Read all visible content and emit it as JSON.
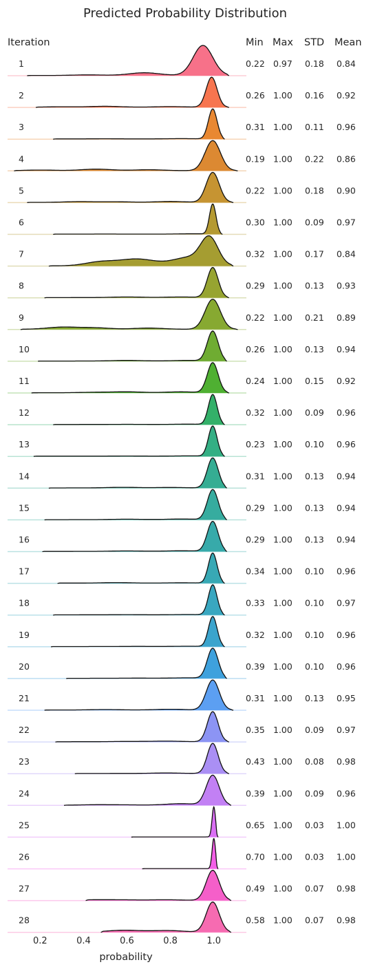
{
  "chart_data": {
    "type": "ridgeline",
    "title": "Predicted Probability Distribution",
    "xlabel": "probability",
    "ylabel": "Iteration",
    "xticks": [
      "0.2",
      "0.4",
      "0.6",
      "0.8",
      "1.0"
    ],
    "xtick_values": [
      0.2,
      0.4,
      0.6,
      0.8,
      1.0
    ],
    "xlim": [
      0.05,
      1.15
    ],
    "columns": [
      "Min",
      "Max",
      "STD",
      "Mean"
    ],
    "grid": false,
    "series": [
      {
        "iteration": "1",
        "min": "0.22",
        "max": "0.97",
        "std": "0.18",
        "mean": "0.84",
        "color": "#f77189",
        "peak": 0.95,
        "width": 0.045,
        "range": [
          0.14,
          1.07
        ],
        "tail": [
          [
            0.42,
            0.02
          ],
          [
            0.68,
            0.09
          ]
        ]
      },
      {
        "iteration": "2",
        "min": "0.26",
        "max": "1.00",
        "std": "0.16",
        "mean": "0.92",
        "color": "#f7754f",
        "peak": 0.99,
        "width": 0.025,
        "range": [
          0.18,
          1.07
        ],
        "tail": [
          [
            0.3,
            0.015
          ],
          [
            0.5,
            0.03
          ],
          [
            0.8,
            0.02
          ]
        ]
      },
      {
        "iteration": "3",
        "min": "0.31",
        "max": "1.00",
        "std": "0.11",
        "mean": "0.96",
        "color": "#e98832",
        "peak": 0.995,
        "width": 0.02,
        "range": [
          0.26,
          1.05
        ],
        "tail": [
          [
            0.5,
            0.005
          ],
          [
            0.85,
            0.01
          ]
        ]
      },
      {
        "iteration": "4",
        "min": "0.19",
        "max": "1.00",
        "std": "0.22",
        "mean": "0.86",
        "color": "#dc8932",
        "peak": 0.995,
        "width": 0.035,
        "range": [
          0.08,
          1.11
        ],
        "tail": [
          [
            0.2,
            0.02
          ],
          [
            0.46,
            0.05
          ],
          [
            0.7,
            0.03
          ]
        ]
      },
      {
        "iteration": "5",
        "min": "0.22",
        "max": "1.00",
        "std": "0.18",
        "mean": "0.90",
        "color": "#c69432",
        "peak": 0.995,
        "width": 0.03,
        "range": [
          0.14,
          1.09
        ],
        "tail": [
          [
            0.38,
            0.025
          ],
          [
            0.55,
            0.02
          ],
          [
            0.8,
            0.03
          ]
        ]
      },
      {
        "iteration": "6",
        "min": "0.30",
        "max": "1.00",
        "std": "0.09",
        "mean": "0.97",
        "color": "#b59a32",
        "peak": 0.995,
        "width": 0.015,
        "range": [
          0.26,
          1.04
        ],
        "tail": [
          [
            0.5,
            0.003
          ],
          [
            0.9,
            0.01
          ]
        ]
      },
      {
        "iteration": "7",
        "min": "0.32",
        "max": "1.00",
        "std": "0.17",
        "mean": "0.84",
        "color": "#a59d31",
        "peak": 0.98,
        "width": 0.04,
        "range": [
          0.24,
          1.09
        ],
        "tail": [
          [
            0.48,
            0.15
          ],
          [
            0.62,
            0.17
          ],
          [
            0.7,
            0.12
          ],
          [
            0.88,
            0.3
          ]
        ]
      },
      {
        "iteration": "8",
        "min": "0.29",
        "max": "1.00",
        "std": "0.13",
        "mean": "0.93",
        "color": "#97a431",
        "peak": 0.995,
        "width": 0.025,
        "range": [
          0.22,
          1.07
        ],
        "tail": [
          [
            0.6,
            0.02
          ],
          [
            0.85,
            0.02
          ]
        ]
      },
      {
        "iteration": "9",
        "min": "0.22",
        "max": "1.00",
        "std": "0.21",
        "mean": "0.89",
        "color": "#87a931",
        "peak": 0.995,
        "width": 0.035,
        "range": [
          0.11,
          1.11
        ],
        "tail": [
          [
            0.3,
            0.07
          ],
          [
            0.45,
            0.05
          ],
          [
            0.7,
            0.04
          ]
        ]
      },
      {
        "iteration": "10",
        "min": "0.26",
        "max": "1.00",
        "std": "0.13",
        "mean": "0.94",
        "color": "#6fac32",
        "peak": 0.995,
        "width": 0.025,
        "range": [
          0.19,
          1.06
        ],
        "tail": [
          [
            0.6,
            0.02
          ],
          [
            0.88,
            0.02
          ]
        ]
      },
      {
        "iteration": "11",
        "min": "0.24",
        "max": "1.00",
        "std": "0.15",
        "mean": "0.92",
        "color": "#4fb032",
        "peak": 0.995,
        "width": 0.025,
        "range": [
          0.16,
          1.07
        ],
        "tail": [
          [
            0.45,
            0.015
          ],
          [
            0.6,
            0.03
          ],
          [
            0.85,
            0.03
          ]
        ]
      },
      {
        "iteration": "12",
        "min": "0.32",
        "max": "1.00",
        "std": "0.09",
        "mean": "0.96",
        "color": "#33b069",
        "peak": 0.995,
        "width": 0.02,
        "range": [
          0.26,
          1.05
        ],
        "tail": [
          [
            0.6,
            0.005
          ],
          [
            0.88,
            0.01
          ]
        ]
      },
      {
        "iteration": "13",
        "min": "0.23",
        "max": "1.00",
        "std": "0.10",
        "mean": "0.96",
        "color": "#34af84",
        "peak": 0.995,
        "width": 0.02,
        "range": [
          0.17,
          1.05
        ],
        "tail": [
          [
            0.6,
            0.005
          ],
          [
            0.88,
            0.01
          ]
        ]
      },
      {
        "iteration": "14",
        "min": "0.31",
        "max": "1.00",
        "std": "0.13",
        "mean": "0.94",
        "color": "#35ad93",
        "peak": 0.995,
        "width": 0.025,
        "range": [
          0.24,
          1.06
        ],
        "tail": [
          [
            0.58,
            0.02
          ],
          [
            0.8,
            0.015
          ]
        ]
      },
      {
        "iteration": "15",
        "min": "0.29",
        "max": "1.00",
        "std": "0.13",
        "mean": "0.94",
        "color": "#36ac9f",
        "peak": 0.995,
        "width": 0.025,
        "range": [
          0.22,
          1.06
        ],
        "tail": [
          [
            0.6,
            0.015
          ],
          [
            0.85,
            0.02
          ]
        ]
      },
      {
        "iteration": "16",
        "min": "0.29",
        "max": "1.00",
        "std": "0.13",
        "mean": "0.94",
        "color": "#37aaaa",
        "peak": 0.995,
        "width": 0.025,
        "range": [
          0.21,
          1.06
        ],
        "tail": [
          [
            0.6,
            0.015
          ],
          [
            0.85,
            0.02
          ]
        ]
      },
      {
        "iteration": "17",
        "min": "0.34",
        "max": "1.00",
        "std": "0.10",
        "mean": "0.96",
        "color": "#38a9b5",
        "peak": 0.995,
        "width": 0.02,
        "range": [
          0.28,
          1.05
        ],
        "tail": [
          [
            0.55,
            0.015
          ],
          [
            0.85,
            0.01
          ]
        ]
      },
      {
        "iteration": "18",
        "min": "0.33",
        "max": "1.00",
        "std": "0.10",
        "mean": "0.97",
        "color": "#39a7c0",
        "peak": 0.995,
        "width": 0.02,
        "range": [
          0.26,
          1.05
        ],
        "tail": [
          [
            0.6,
            0.005
          ],
          [
            0.88,
            0.01
          ]
        ]
      },
      {
        "iteration": "19",
        "min": "0.32",
        "max": "1.00",
        "std": "0.10",
        "mean": "0.96",
        "color": "#3ba4cd",
        "peak": 0.995,
        "width": 0.02,
        "range": [
          0.25,
          1.05
        ],
        "tail": [
          [
            0.65,
            0.005
          ],
          [
            0.88,
            0.01
          ]
        ]
      },
      {
        "iteration": "20",
        "min": "0.39",
        "max": "1.00",
        "std": "0.10",
        "mean": "0.96",
        "color": "#3ea1dd",
        "peak": 0.995,
        "width": 0.025,
        "range": [
          0.32,
          1.06
        ],
        "tail": [
          [
            0.65,
            0.005
          ],
          [
            0.88,
            0.015
          ]
        ]
      },
      {
        "iteration": "21",
        "min": "0.31",
        "max": "1.00",
        "std": "0.13",
        "mean": "0.95",
        "color": "#5c9ff2",
        "peak": 0.995,
        "width": 0.03,
        "range": [
          0.22,
          1.09
        ],
        "tail": [
          [
            0.5,
            0.015
          ],
          [
            0.8,
            0.025
          ]
        ]
      },
      {
        "iteration": "22",
        "min": "0.35",
        "max": "1.00",
        "std": "0.09",
        "mean": "0.97",
        "color": "#8c94f4",
        "peak": 0.995,
        "width": 0.025,
        "range": [
          0.27,
          1.07
        ],
        "tail": [
          [
            0.6,
            0.01
          ],
          [
            0.78,
            0.02
          ]
        ]
      },
      {
        "iteration": "23",
        "min": "0.43",
        "max": "1.00",
        "std": "0.08",
        "mean": "0.98",
        "color": "#aa8ff4",
        "peak": 0.995,
        "width": 0.025,
        "range": [
          0.36,
          1.07
        ],
        "tail": [
          [
            0.78,
            0.015
          ]
        ]
      },
      {
        "iteration": "24",
        "min": "0.39",
        "max": "1.00",
        "std": "0.09",
        "mean": "0.96",
        "color": "#c280f4",
        "peak": 0.995,
        "width": 0.03,
        "range": [
          0.31,
          1.08
        ],
        "tail": [
          [
            0.46,
            0.015
          ],
          [
            0.6,
            0.01
          ],
          [
            0.85,
            0.05
          ]
        ]
      },
      {
        "iteration": "25",
        "min": "0.65",
        "max": "1.00",
        "std": "0.03",
        "mean": "1.00",
        "color": "#da6ff4",
        "peak": 1.0,
        "width": 0.008,
        "range": [
          0.62,
          1.02
        ],
        "tail": []
      },
      {
        "iteration": "26",
        "min": "0.70",
        "max": "1.00",
        "std": "0.03",
        "mean": "1.00",
        "color": "#f35fe7",
        "peak": 1.0,
        "width": 0.008,
        "range": [
          0.67,
          1.02
        ],
        "tail": []
      },
      {
        "iteration": "27",
        "min": "0.49",
        "max": "1.00",
        "std": "0.07",
        "mean": "0.98",
        "color": "#f55fc9",
        "peak": 0.995,
        "width": 0.03,
        "range": [
          0.41,
          1.08
        ],
        "tail": [
          [
            0.46,
            0.02
          ],
          [
            0.6,
            0.015
          ],
          [
            0.78,
            0.02
          ]
        ]
      },
      {
        "iteration": "28",
        "min": "0.58",
        "max": "1.00",
        "std": "0.07",
        "mean": "0.98",
        "color": "#f66bb1",
        "peak": 0.995,
        "width": 0.03,
        "range": [
          0.48,
          1.08
        ],
        "tail": [
          [
            0.57,
            0.05
          ],
          [
            0.65,
            0.02
          ],
          [
            0.79,
            0.05
          ]
        ]
      }
    ]
  }
}
